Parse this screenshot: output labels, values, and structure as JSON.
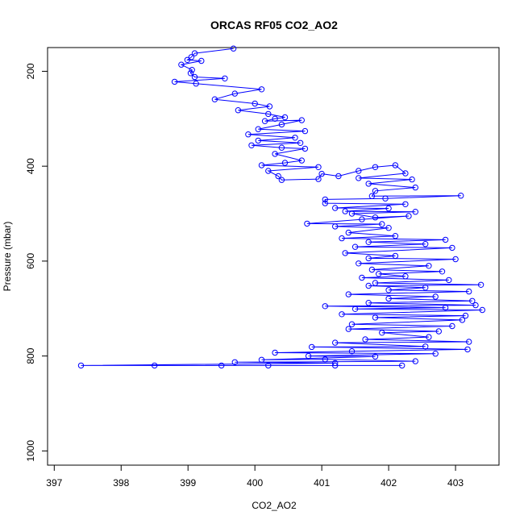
{
  "chart_data": {
    "type": "scatter",
    "title": "ORCAS RF05 CO2_AO2",
    "xlabel": "CO2_AO2",
    "ylabel": "Pressure (mbar)",
    "xlim": [
      396.9,
      403.65
    ],
    "ylim": [
      1030,
      150
    ],
    "y_reversed": true,
    "xticks": [
      397,
      398,
      399,
      400,
      401,
      402,
      403
    ],
    "yticks": [
      200,
      400,
      600,
      800,
      1000
    ],
    "grid": false,
    "legend": "none",
    "color": "#0000ff",
    "marker": "open-circle",
    "connect_points": true,
    "series": [
      {
        "values_note": "",
        "points": [
          [
            399.68,
            152
          ],
          [
            399.1,
            162
          ],
          [
            399.05,
            170
          ],
          [
            398.99,
            176
          ],
          [
            399.2,
            178
          ],
          [
            398.9,
            186
          ],
          [
            399.06,
            197
          ],
          [
            399.04,
            204
          ],
          [
            399.1,
            212
          ],
          [
            399.55,
            215
          ],
          [
            398.8,
            222
          ],
          [
            399.12,
            226
          ],
          [
            400.1,
            238
          ],
          [
            399.7,
            247
          ],
          [
            399.4,
            259
          ],
          [
            400.0,
            268
          ],
          [
            400.22,
            274
          ],
          [
            399.75,
            282
          ],
          [
            400.2,
            290
          ],
          [
            400.45,
            297
          ],
          [
            400.3,
            300
          ],
          [
            400.15,
            305
          ],
          [
            400.7,
            303
          ],
          [
            400.4,
            312
          ],
          [
            400.05,
            322
          ],
          [
            400.75,
            326
          ],
          [
            399.9,
            333
          ],
          [
            400.6,
            340
          ],
          [
            400.05,
            346
          ],
          [
            400.68,
            351
          ],
          [
            399.95,
            356
          ],
          [
            400.4,
            361
          ],
          [
            400.75,
            363
          ],
          [
            400.3,
            374
          ],
          [
            400.7,
            388
          ],
          [
            400.45,
            393
          ],
          [
            400.1,
            398
          ],
          [
            400.95,
            402
          ],
          [
            400.2,
            410
          ],
          [
            400.35,
            421
          ],
          [
            400.4,
            429
          ],
          [
            400.95,
            427
          ],
          [
            401.0,
            416
          ],
          [
            401.25,
            421
          ],
          [
            401.55,
            410
          ],
          [
            401.8,
            402
          ],
          [
            402.1,
            398
          ],
          [
            402.25,
            415
          ],
          [
            401.55,
            425
          ],
          [
            402.35,
            428
          ],
          [
            401.7,
            437
          ],
          [
            402.4,
            445
          ],
          [
            401.8,
            452
          ],
          [
            401.75,
            463
          ],
          [
            403.08,
            462
          ],
          [
            401.95,
            468
          ],
          [
            401.05,
            470
          ],
          [
            401.05,
            478
          ],
          [
            402.25,
            480
          ],
          [
            401.2,
            488
          ],
          [
            402.0,
            489
          ],
          [
            401.35,
            495
          ],
          [
            402.4,
            496
          ],
          [
            401.45,
            500
          ],
          [
            401.8,
            508
          ],
          [
            402.3,
            505
          ],
          [
            401.6,
            512
          ],
          [
            400.78,
            521
          ],
          [
            401.9,
            522
          ],
          [
            401.2,
            527
          ],
          [
            402.0,
            530
          ],
          [
            401.4,
            540
          ],
          [
            402.1,
            547
          ],
          [
            401.3,
            552
          ],
          [
            402.85,
            555
          ],
          [
            401.7,
            560
          ],
          [
            402.55,
            564
          ],
          [
            401.5,
            570
          ],
          [
            402.95,
            572
          ],
          [
            401.35,
            583
          ],
          [
            402.1,
            589
          ],
          [
            401.7,
            594
          ],
          [
            403.0,
            596
          ],
          [
            401.55,
            605
          ],
          [
            402.6,
            610
          ],
          [
            401.75,
            618
          ],
          [
            402.8,
            622
          ],
          [
            401.85,
            627
          ],
          [
            402.25,
            632
          ],
          [
            401.6,
            635
          ],
          [
            402.9,
            640
          ],
          [
            401.8,
            646
          ],
          [
            403.38,
            650
          ],
          [
            401.7,
            652
          ],
          [
            402.55,
            656
          ],
          [
            402.0,
            661
          ],
          [
            403.2,
            664
          ],
          [
            401.4,
            670
          ],
          [
            402.7,
            675
          ],
          [
            402.0,
            679
          ],
          [
            403.25,
            684
          ],
          [
            401.7,
            688
          ],
          [
            403.3,
            693
          ],
          [
            401.05,
            695
          ],
          [
            402.85,
            698
          ],
          [
            401.5,
            701
          ],
          [
            403.4,
            703
          ],
          [
            401.3,
            712
          ],
          [
            403.15,
            715
          ],
          [
            401.8,
            719
          ],
          [
            403.1,
            724
          ],
          [
            401.45,
            733
          ],
          [
            402.95,
            737
          ],
          [
            401.4,
            743
          ],
          [
            402.75,
            748
          ],
          [
            401.9,
            751
          ],
          [
            402.6,
            760
          ],
          [
            401.65,
            765
          ],
          [
            403.2,
            770
          ],
          [
            401.2,
            772
          ],
          [
            402.55,
            780
          ],
          [
            400.85,
            781
          ],
          [
            403.18,
            786
          ],
          [
            401.45,
            790
          ],
          [
            400.3,
            793
          ],
          [
            402.7,
            795
          ],
          [
            400.8,
            800
          ],
          [
            401.8,
            801
          ],
          [
            400.1,
            808
          ],
          [
            401.05,
            807
          ],
          [
            402.4,
            811
          ],
          [
            399.7,
            813
          ],
          [
            401.2,
            815
          ],
          [
            397.4,
            820
          ],
          [
            398.5,
            820
          ],
          [
            399.5,
            820
          ],
          [
            400.2,
            820
          ],
          [
            401.2,
            820
          ],
          [
            402.2,
            820
          ]
        ]
      }
    ]
  }
}
